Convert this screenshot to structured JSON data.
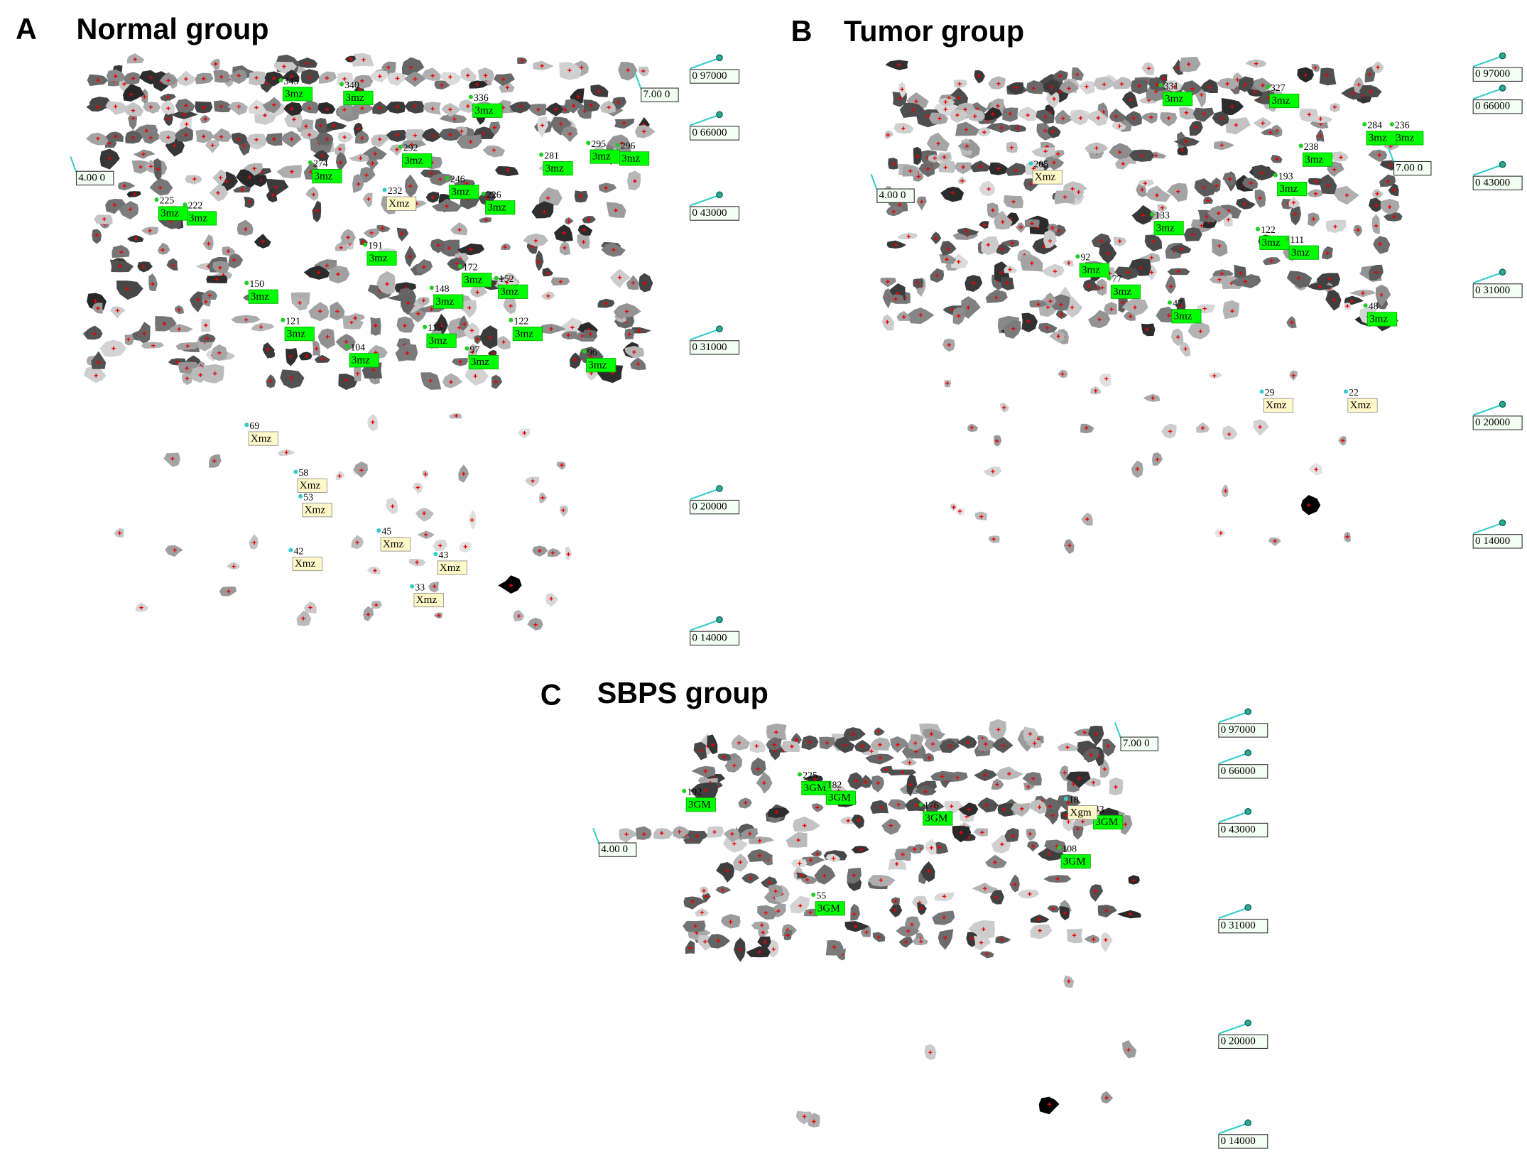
{
  "panels": [
    {
      "letter": "A",
      "title": "Normal group",
      "mw_markers": [
        "0 97000",
        "0 66000",
        "0 43000",
        "0 31000",
        "0 20000",
        "0 14000"
      ],
      "pi_markers": [
        "7.00 0",
        "4.00 0"
      ],
      "spots": [
        {
          "num": "345",
          "tag": "3mz"
        },
        {
          "num": "340",
          "tag": "3mz"
        },
        {
          "num": "336",
          "tag": "3mz"
        },
        {
          "num": "295",
          "tag": "3mz"
        },
        {
          "num": "296",
          "tag": "3mz"
        },
        {
          "num": "292",
          "tag": "3mz"
        },
        {
          "num": "274",
          "tag": "3mz"
        },
        {
          "num": "281",
          "tag": "3mz"
        },
        {
          "num": "246",
          "tag": "3mz"
        },
        {
          "num": "232",
          "tag": "Xmz"
        },
        {
          "num": "226",
          "tag": "3mz"
        },
        {
          "num": "222",
          "tag": "3mz"
        },
        {
          "num": "225",
          "tag": "3mz"
        },
        {
          "num": "191",
          "tag": "3mz"
        },
        {
          "num": "172",
          "tag": "3mz"
        },
        {
          "num": "152",
          "tag": "3mz"
        },
        {
          "num": "150",
          "tag": "3mz"
        },
        {
          "num": "148",
          "tag": "3mz"
        },
        {
          "num": "121",
          "tag": "3mz"
        },
        {
          "num": "115",
          "tag": "3mz"
        },
        {
          "num": "122",
          "tag": "3mz"
        },
        {
          "num": "104",
          "tag": "3mz"
        },
        {
          "num": "97",
          "tag": "3mz"
        },
        {
          "num": "96",
          "tag": "3mz"
        },
        {
          "num": "69",
          "tag": "Xmz"
        },
        {
          "num": "58",
          "tag": "Xmz"
        },
        {
          "num": "53",
          "tag": "Xmz"
        },
        {
          "num": "45",
          "tag": "Xmz"
        },
        {
          "num": "43",
          "tag": "Xmz"
        },
        {
          "num": "42",
          "tag": "Xmz"
        },
        {
          "num": "33",
          "tag": "Xmz"
        }
      ]
    },
    {
      "letter": "B",
      "title": "Tumor group",
      "mw_markers": [
        "0 97000",
        "0 66000",
        "0 43000",
        "0 31000",
        "0 20000",
        "0 14000"
      ],
      "pi_markers": [
        "7.00 0",
        "4.00 0"
      ],
      "spots": [
        {
          "num": "327",
          "tag": "3mz"
        },
        {
          "num": "331",
          "tag": "3mz"
        },
        {
          "num": "236",
          "tag": "3mz"
        },
        {
          "num": "284",
          "tag": "3mz"
        },
        {
          "num": "205",
          "tag": "Xmz"
        },
        {
          "num": "238",
          "tag": "3mz"
        },
        {
          "num": "193",
          "tag": "3mz"
        },
        {
          "num": "133",
          "tag": "3mz"
        },
        {
          "num": "122",
          "tag": "3mz"
        },
        {
          "num": "111",
          "tag": "3mz"
        },
        {
          "num": "92",
          "tag": "3mz"
        },
        {
          "num": "77",
          "tag": "3mz"
        },
        {
          "num": "47",
          "tag": "3mz"
        },
        {
          "num": "29",
          "tag": "Xmz"
        },
        {
          "num": "22",
          "tag": "Xmz"
        },
        {
          "num": "48",
          "tag": "3mz"
        }
      ]
    },
    {
      "letter": "C",
      "title": "SBPS group",
      "mw_markers": [
        "0 97000",
        "0 66000",
        "0 43000",
        "0 31000",
        "0 20000",
        "0 14000"
      ],
      "pi_markers": [
        "7.00 0",
        "4.00 0"
      ],
      "spots": [
        {
          "num": "225",
          "tag": "3GM"
        },
        {
          "num": "192",
          "tag": "3GM"
        },
        {
          "num": "182",
          "tag": "3GM"
        },
        {
          "num": "176",
          "tag": "3GM"
        },
        {
          "num": "43",
          "tag": "3GM"
        },
        {
          "num": "108",
          "tag": "3GM"
        },
        {
          "num": "55",
          "tag": "3GM"
        },
        {
          "num": "18",
          "tag": "Xgm"
        }
      ]
    }
  ]
}
